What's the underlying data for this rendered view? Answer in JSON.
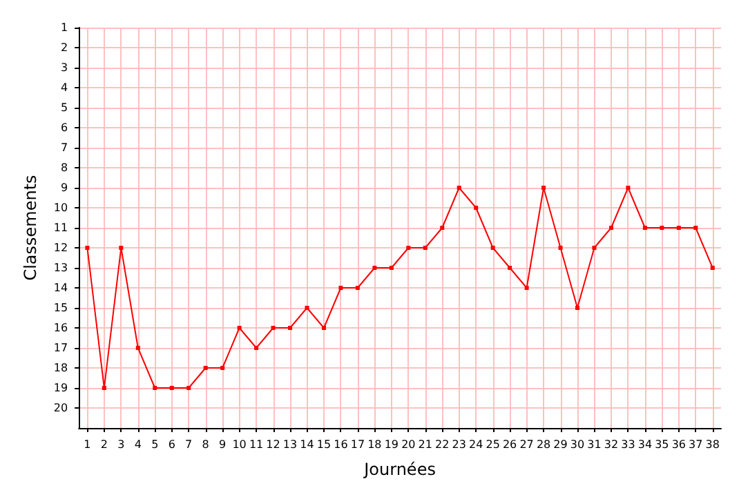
{
  "chart_data": {
    "type": "line",
    "xlabel": "Journées",
    "ylabel": "Classements",
    "x": [
      1,
      2,
      3,
      4,
      5,
      6,
      7,
      8,
      9,
      10,
      11,
      12,
      13,
      14,
      15,
      16,
      17,
      18,
      19,
      20,
      21,
      22,
      23,
      24,
      25,
      26,
      27,
      28,
      29,
      30,
      31,
      32,
      33,
      34,
      35,
      36,
      37,
      38
    ],
    "series": [
      {
        "color": "#ff0000",
        "values": [
          12,
          19,
          12,
          17,
          19,
          19,
          19,
          18,
          18,
          16,
          17,
          16,
          16,
          15,
          16,
          14,
          14,
          13,
          13,
          12,
          12,
          11,
          9,
          10,
          12,
          13,
          14,
          9,
          12,
          15,
          12,
          11,
          9,
          11,
          11,
          11,
          11,
          13
        ]
      }
    ],
    "xlim": [
      0.5,
      38.5
    ],
    "xticks": [
      1,
      2,
      3,
      4,
      5,
      6,
      7,
      8,
      9,
      10,
      11,
      12,
      13,
      14,
      15,
      16,
      17,
      18,
      19,
      20,
      21,
      22,
      23,
      24,
      25,
      26,
      27,
      28,
      29,
      30,
      31,
      32,
      33,
      34,
      35,
      36,
      37,
      38
    ],
    "ylim": [
      21,
      1
    ],
    "yticks": [
      1,
      2,
      3,
      4,
      5,
      6,
      7,
      8,
      9,
      10,
      11,
      12,
      13,
      14,
      15,
      16,
      17,
      18,
      19,
      20
    ],
    "grid": true,
    "marker": "square",
    "line_style": "solid"
  }
}
